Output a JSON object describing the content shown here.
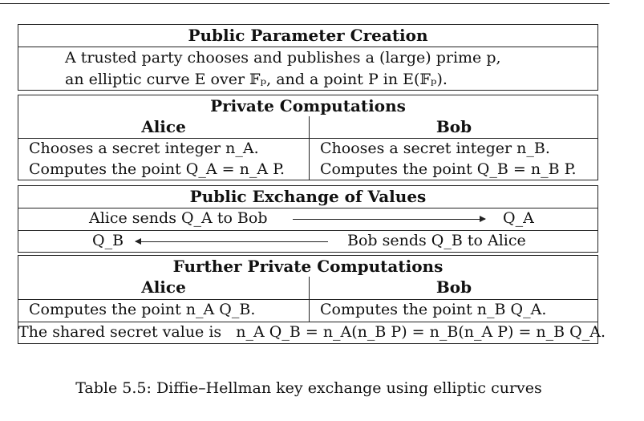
{
  "public_params": {
    "title": "Public Parameter Creation",
    "line1": "A trusted party chooses and publishes a (large) prime p,",
    "line2": "an elliptic curve E over 𝔽ₚ, and a point P in E(𝔽ₚ)."
  },
  "private_computations": {
    "title": "Private Computations",
    "alice_head": "Alice",
    "bob_head": "Bob",
    "alice_line1": "Chooses a secret integer n_A.",
    "alice_line2": "Computes the point Q_A = n_A P.",
    "bob_line1": "Chooses a secret integer n_B.",
    "bob_line2": "Computes the point Q_B = n_B P."
  },
  "public_exchange": {
    "title": "Public Exchange of Values",
    "row1_left": "Alice sends Q_A to Bob",
    "row1_right": "Q_A",
    "row2_left": "Q_B",
    "row2_right": "Bob sends Q_B to Alice"
  },
  "further_private": {
    "title": "Further Private Computations",
    "alice_head": "Alice",
    "bob_head": "Bob",
    "alice_line": "Computes the point n_A Q_B.",
    "bob_line": "Computes the point n_B Q_A.",
    "shared_secret": "The shared secret value is   n_A Q_B = n_A(n_B P) = n_B(n_A P) = n_B Q_A."
  },
  "caption": "Table 5.5: Diffie–Hellman key exchange using elliptic curves"
}
